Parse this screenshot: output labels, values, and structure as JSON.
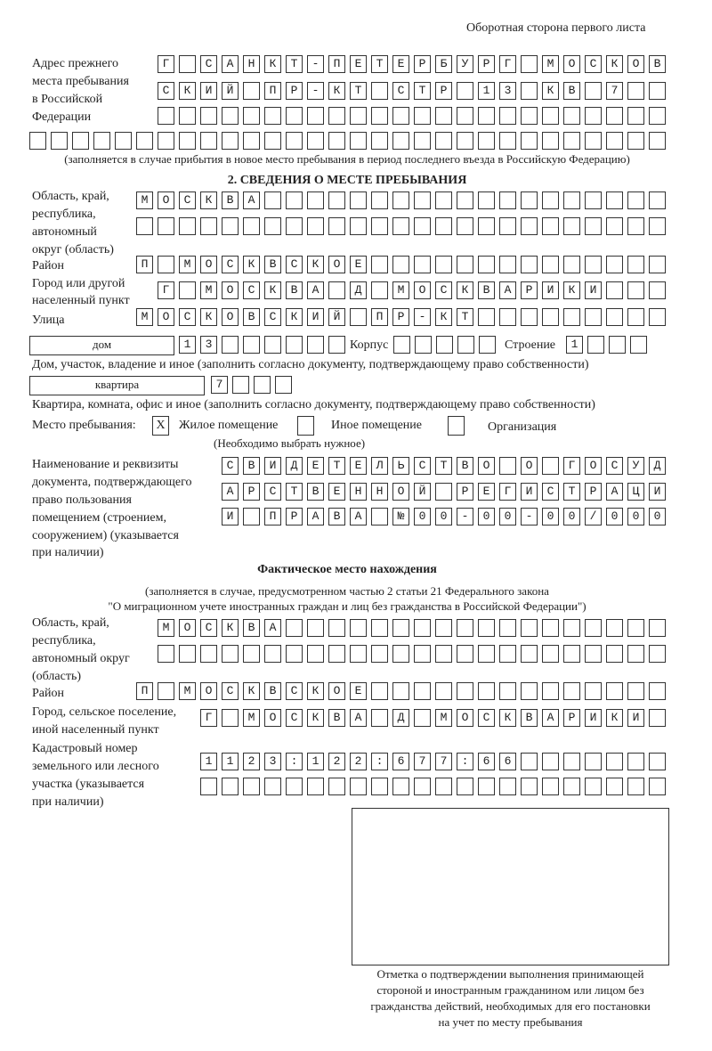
{
  "page_header": "Оборотная сторона первого листа",
  "prev_address": {
    "label": [
      "Адрес прежнего",
      "места пребывания",
      "в Российской",
      "Федерации"
    ],
    "rows": [
      "Г САНКТ-ПЕТЕРБУРГ МОСКОВ",
      "СКИЙ ПР-КТ СТР 13 КВ 7  ",
      "                        ",
      "                              "
    ],
    "note": "(заполняется в случае прибытия в новое место пребывания в период последнего въезда в Российскую Федерацию)"
  },
  "section2": {
    "title": "2. СВЕДЕНИЯ О МЕСТЕ ПРЕБЫВАНИЯ",
    "region_label": [
      "Область, край,",
      "республика,",
      "автономный",
      "округ (область)"
    ],
    "region_rows": [
      "МОСКВА                   ",
      "                         "
    ],
    "district_label": "Район",
    "district_row": "П МОСКВСКОЕ              ",
    "city_label": [
      "Город или другой",
      "населенный пункт"
    ],
    "city_row": "Г МОСКВА Д МОСКВАРИКИ   ",
    "street_label": "Улица",
    "street_row": "МОСКОВСКИЙ ПР-КТ         ",
    "house_type": "дом",
    "house_row": "13      ",
    "korpus_label": "Корпус",
    "korpus_row": "     ",
    "building_label": "Строение",
    "building_row": "1   ",
    "house_note": "Дом, участок, владение и иное (заполнить согласно документу, подтверждающему право собственности)",
    "apt_type": "квартира",
    "apt_row": "7   ",
    "apt_note": "Квартира, комната, офис и иное (заполнить согласно документу, подтверждающему право собственности)",
    "stay_label": "Место пребывания:",
    "stay_options": [
      {
        "label": "Жилое помещение",
        "mark": "X"
      },
      {
        "label": "Иное помещение",
        "mark": ""
      },
      {
        "label": "Организация",
        "mark": ""
      }
    ],
    "stay_note": "(Необходимо выбрать нужное)",
    "doc_label": [
      "Наименование и реквизиты",
      "документа, подтверждающего",
      "право пользования",
      "помещением (строением,",
      "сооружением) (указывается",
      "при наличии)"
    ],
    "doc_rows": [
      "СВИДЕТЕЛЬСТВО О ГОСУД",
      "АРСТВЕННОЙ РЕГИСТРАЦИ",
      "И ПРАВА №00-00-00/000"
    ]
  },
  "actual": {
    "title": "Фактическое место нахождения",
    "note": [
      "(заполняется в случае, предусмотренном частью 2 статьи 21 Федерального закона",
      "\"О миграционном учете иностранных граждан и лиц без гражданства в Российской Федерации\")"
    ],
    "region_label": [
      "Область, край,",
      "республика,",
      "автономный округ",
      "(область)"
    ],
    "region_rows": [
      "МОСКВА                  ",
      "                        "
    ],
    "district_label": "Район",
    "district_row": "П МОСКВСКОЕ              ",
    "city_label": [
      "Город, сельское поселение,",
      "иной населенный пункт"
    ],
    "city_row": "Г МОСКВА Д МОСКВАРИКИ ",
    "cadastre_label": [
      "Кадастровый номер",
      "земельного или лесного",
      "участка (указывается",
      "при наличии)"
    ],
    "cadastre_rows": [
      "1123:122:677:66       ",
      "                      "
    ]
  },
  "stamp_caption": [
    "Отметка о подтверждении выполнения принимающей",
    "стороной и иностранным гражданином или лицом без",
    "гражданства действий, необходимых для его постановки",
    "на учет по месту пребывания"
  ]
}
